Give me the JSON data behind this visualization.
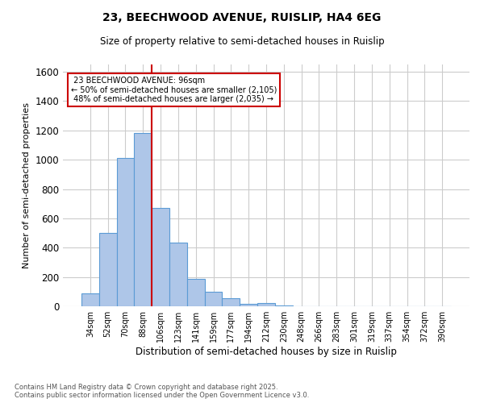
{
  "title1": "23, BEECHWOOD AVENUE, RUISLIP, HA4 6EG",
  "title2": "Size of property relative to semi-detached houses in Ruislip",
  "xlabel": "Distribution of semi-detached houses by size in Ruislip",
  "ylabel": "Number of semi-detached properties",
  "bar_labels": [
    "34sqm",
    "52sqm",
    "70sqm",
    "88sqm",
    "106sqm",
    "123sqm",
    "141sqm",
    "159sqm",
    "177sqm",
    "194sqm",
    "212sqm",
    "230sqm",
    "248sqm",
    "266sqm",
    "283sqm",
    "301sqm",
    "319sqm",
    "337sqm",
    "354sqm",
    "372sqm",
    "390sqm"
  ],
  "bar_values": [
    90,
    500,
    1010,
    1185,
    670,
    435,
    185,
    100,
    55,
    15,
    22,
    5,
    0,
    0,
    0,
    0,
    0,
    0,
    0,
    0,
    0
  ],
  "bar_color": "#aec6e8",
  "bar_edge_color": "#5b9bd5",
  "property_line_label": "23 BEECHWOOD AVENUE: 96sqm",
  "smaller_pct": "50%",
  "smaller_count": "2,105",
  "larger_pct": "48%",
  "larger_count": "2,035",
  "ylim": [
    0,
    1650
  ],
  "annotation_box_color": "#ffffff",
  "annotation_box_edge": "#cc0000",
  "vertical_line_color": "#cc0000",
  "background_color": "#ffffff",
  "grid_color": "#cccccc",
  "footer_line1": "Contains HM Land Registry data © Crown copyright and database right 2025.",
  "footer_line2": "Contains public sector information licensed under the Open Government Licence v3.0."
}
